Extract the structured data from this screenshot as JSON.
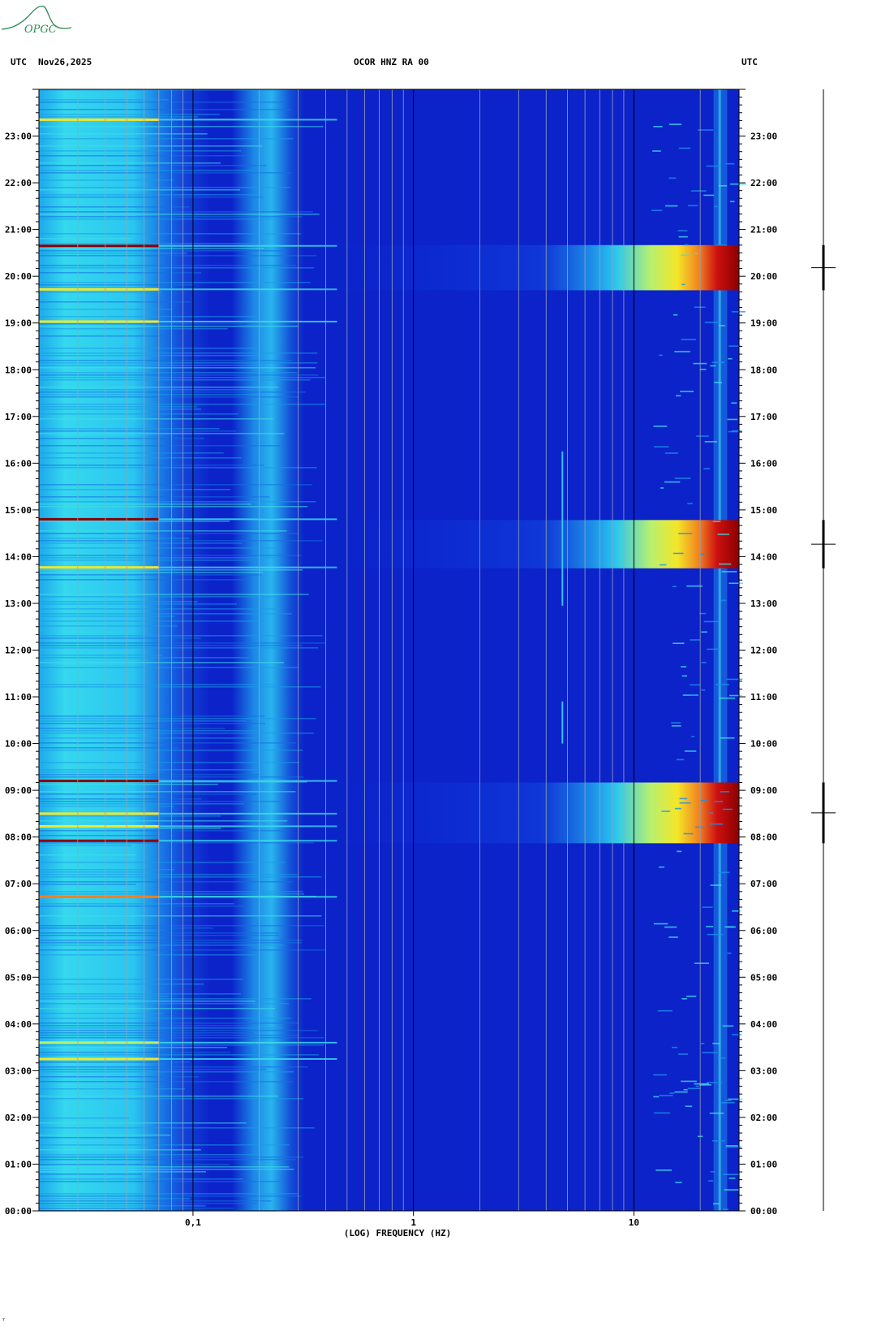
{
  "logo": {
    "text": "OPGC",
    "color": "#2e8b57"
  },
  "header": {
    "left_tz": "UTC",
    "date": "Nov26,2025",
    "station": "OCOR HNZ RA 00",
    "right_tz": "UTC"
  },
  "footer_mark": "ᵀ",
  "colors": {
    "background": "#0a1fb8",
    "deep": "#0b23c9",
    "cyan": "#22d8f0",
    "yellow": "#f4e628",
    "red": "#8b0000",
    "grid_minor": "#9aa3b8",
    "grid_major": "#000000"
  },
  "chart_data": {
    "type": "heatmap",
    "title": "OCOR HNZ RA 00",
    "xlabel": "(LOG) FREQUENCY (HZ)",
    "ylabel": "UTC",
    "x_scale": "log",
    "xlim": [
      0.02,
      30
    ],
    "ylim_hours": [
      0,
      24
    ],
    "x_ticks": [
      {
        "value": 0.1,
        "label": "0,1"
      },
      {
        "value": 1,
        "label": "1"
      },
      {
        "value": 10,
        "label": "10"
      }
    ],
    "y_ticks": [
      "00:00",
      "01:00",
      "02:00",
      "03:00",
      "04:00",
      "05:00",
      "06:00",
      "07:00",
      "08:00",
      "09:00",
      "10:00",
      "11:00",
      "12:00",
      "13:00",
      "14:00",
      "15:00",
      "16:00",
      "17:00",
      "18:00",
      "19:00",
      "20:00",
      "21:00",
      "22:00",
      "23:00"
    ],
    "events": [
      {
        "start": "07:52",
        "end": "09:10",
        "peak_freq_hz_from": 15
      },
      {
        "start": "13:45",
        "end": "14:47",
        "peak_freq_hz_from": 15
      },
      {
        "start": "19:42",
        "end": "20:40",
        "peak_freq_hz_from": 15
      }
    ],
    "grid": true
  }
}
